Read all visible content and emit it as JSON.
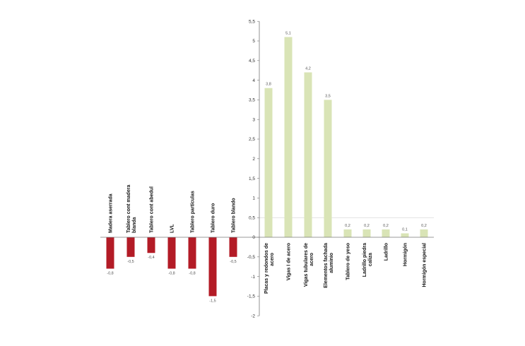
{
  "chart_data": {
    "type": "bar",
    "ylim": [
      -2,
      5.5
    ],
    "yticks": [
      "-2",
      "-1,5",
      "-1",
      "-0,5",
      "0",
      "0,5",
      "1",
      "1,5",
      "2",
      "2,5",
      "3",
      "3,5",
      "4",
      "4,5",
      "5",
      "5,5"
    ],
    "grid": false,
    "colors": {
      "negative": "#b31b26",
      "positive": "#d9e4b6",
      "axis": "#777777",
      "gridline": "#cfcfcf"
    },
    "categories": [
      "Madera aserrada",
      "Tablero cont madera blanda",
      "Tablero cont abedul",
      "LVL",
      "Tablero partículas",
      "Tablero duro",
      "Tablero blando",
      "Placas y redondos de acero",
      "Vigas I de acero",
      "Vigas tubulares de acero",
      "Elementos fachada aluminio",
      "Tablero de yeso",
      "Ladrillo piedra caliza",
      "Ladrillo",
      "Hormigón",
      "Hormigón especial"
    ],
    "values": [
      -0.8,
      -0.5,
      -0.4,
      -0.8,
      -0.8,
      -1.5,
      -0.5,
      3.8,
      5.1,
      4.2,
      3.5,
      0.2,
      0.2,
      0.2,
      0.1,
      0.2
    ],
    "value_labels": [
      "-0,8",
      "-0,5",
      "-0,4",
      "-0,8",
      "-0,8",
      "-1,5",
      "-0,5",
      "3,8",
      "5,1",
      "4,2",
      "3,5",
      "0,2",
      "0,2",
      "0,2",
      "0,1",
      "0,2"
    ]
  }
}
